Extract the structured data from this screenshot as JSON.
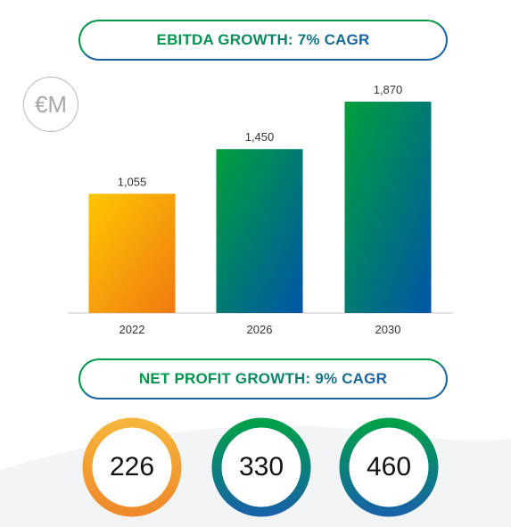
{
  "ebitda_title": "EBITDA GROWTH: 7% CAGR",
  "net_profit_title": "NET PROFIT GROWTH: 9% CAGR",
  "unit": "€M",
  "chart_data": [
    {
      "type": "bar",
      "title": "EBITDA GROWTH: 7% CAGR",
      "unit": "€M",
      "categories": [
        "2022",
        "2026",
        "2030"
      ],
      "values": [
        1055,
        1450,
        1870
      ],
      "value_labels": [
        "1,055",
        "1,450",
        "1,870"
      ],
      "ylim": [
        0,
        2000
      ],
      "grid": false,
      "colors": {
        "yellow_top": "#ffc700",
        "yellow_bottom": "#f07a12",
        "green_top": "#00a03c",
        "blue_bottom": "#0055a8"
      }
    },
    {
      "type": "circles",
      "title": "NET PROFIT GROWTH: 9% CAGR",
      "values": [
        "226",
        "330",
        "460"
      ],
      "colors": {
        "orange_top": "#f5b53a",
        "orange_bottom": "#f08a2c",
        "green_top": "#00a04a",
        "blue_bottom": "#1763a6"
      }
    }
  ]
}
